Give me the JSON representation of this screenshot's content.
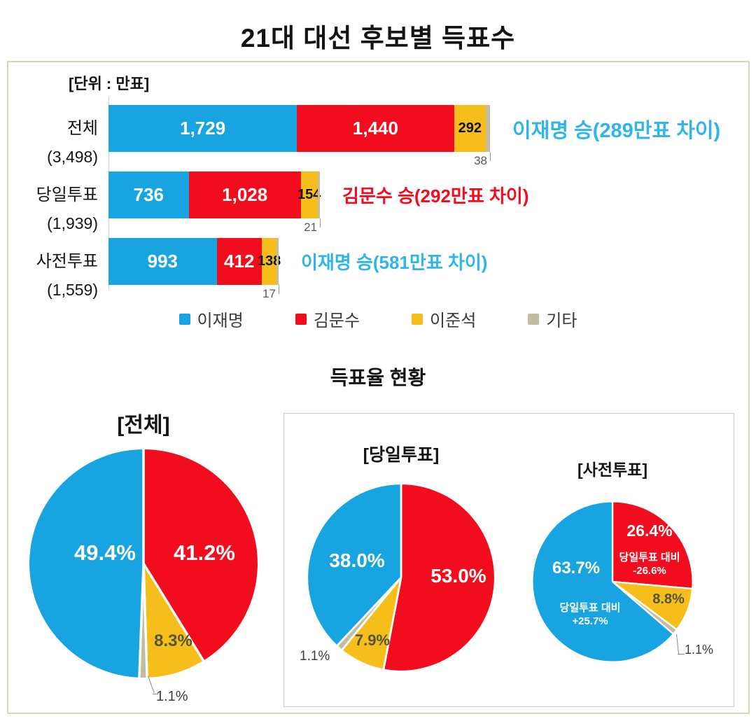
{
  "page": {
    "title": "21대 대선 후보별 득표수"
  },
  "colors": {
    "lee": "#17A4E0",
    "kim": "#F20D1E",
    "jun": "#F5BE1B",
    "etc": "#C2BDA2",
    "win_blue": "#2FB5EA",
    "win_red": "#F20D1E"
  },
  "bar_section": {
    "unit_label": "[단위 : 만표]",
    "legend": [
      {
        "name": "이재명",
        "color": "lee"
      },
      {
        "name": "김문수",
        "color": "kim"
      },
      {
        "name": "이준석",
        "color": "jun"
      },
      {
        "name": "기타",
        "color": "etc"
      }
    ]
  },
  "pie_section": {
    "title": "득표율 현황"
  },
  "chart_data": [
    {
      "type": "bar",
      "orientation": "horizontal",
      "stacked": true,
      "unit": "만표",
      "categories": [
        "전체",
        "당일투표",
        "사전투표"
      ],
      "totals": [
        "(3,498)",
        "(1,939)",
        "(1,559)"
      ],
      "series": [
        {
          "name": "이재명",
          "color": "lee",
          "values": [
            1729,
            736,
            993
          ],
          "labels": [
            "1,729",
            "736",
            "993"
          ],
          "label_position": "inside"
        },
        {
          "name": "김문수",
          "color": "kim",
          "values": [
            1440,
            1028,
            412
          ],
          "labels": [
            "1,440",
            "1,028",
            "412"
          ],
          "label_position": "inside"
        },
        {
          "name": "이준석",
          "color": "jun",
          "values": [
            292,
            154,
            138
          ],
          "labels": [
            "292",
            "154",
            "138"
          ],
          "label_position": "inside"
        },
        {
          "name": "기타",
          "color": "etc",
          "values": [
            38,
            21,
            17
          ],
          "labels": [
            "38",
            "21",
            "17"
          ],
          "label_position": "below"
        }
      ],
      "annotations": [
        {
          "text": "이재명 승(289만표 차이)",
          "color": "win_blue"
        },
        {
          "text": "김문수 승(292만표 차이)",
          "color": "win_red"
        },
        {
          "text": "이재명 승(581만표 차이)",
          "color": "win_blue"
        }
      ]
    },
    {
      "type": "pie",
      "title": "[전체]",
      "slices": [
        {
          "name": "김문수",
          "color": "kim",
          "pct": 41.2,
          "label": "41.2%"
        },
        {
          "name": "이준석",
          "color": "jun",
          "pct": 8.3,
          "label": "8.3%"
        },
        {
          "name": "기타",
          "color": "etc",
          "pct": 1.1,
          "label": "1.1%"
        },
        {
          "name": "이재명",
          "color": "lee",
          "pct": 49.4,
          "label": "49.4%"
        }
      ]
    },
    {
      "type": "pie",
      "title": "[당일투표]",
      "slices": [
        {
          "name": "김문수",
          "color": "kim",
          "pct": 53.0,
          "label": "53.0%"
        },
        {
          "name": "이준석",
          "color": "jun",
          "pct": 7.9,
          "label": "7.9%"
        },
        {
          "name": "기타",
          "color": "etc",
          "pct": 1.1,
          "label": "1.1%"
        },
        {
          "name": "이재명",
          "color": "lee",
          "pct": 38.0,
          "label": "38.0%"
        }
      ]
    },
    {
      "type": "pie",
      "title": "[사전투표]",
      "slices": [
        {
          "name": "김문수",
          "color": "kim",
          "pct": 26.4,
          "label": "26.4%",
          "note": [
            "당일투표 대비",
            "-26.6%"
          ]
        },
        {
          "name": "이준석",
          "color": "jun",
          "pct": 8.8,
          "label": "8.8%"
        },
        {
          "name": "기타",
          "color": "etc",
          "pct": 1.1,
          "label": "1.1%"
        },
        {
          "name": "이재명",
          "color": "lee",
          "pct": 63.7,
          "label": "63.7%",
          "note": [
            "당일투표 대비",
            "+25.7%"
          ]
        }
      ]
    }
  ]
}
